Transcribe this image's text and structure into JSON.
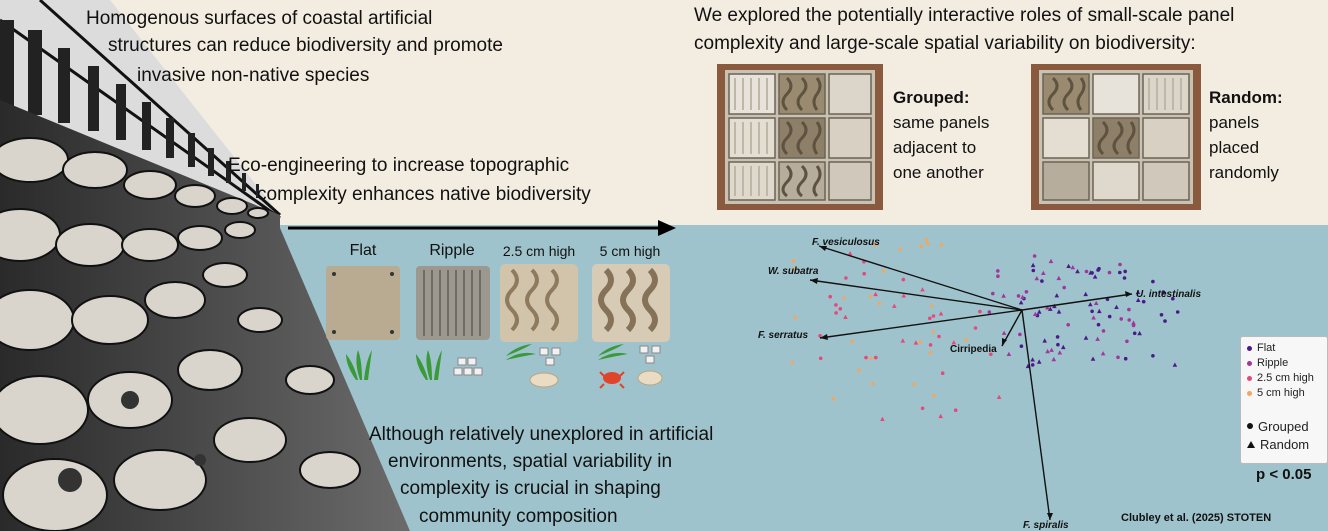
{
  "intro_text": {
    "line1": "Homogenous surfaces of coastal artificial",
    "line2": "structures can reduce biodiversity and promote",
    "line3": "invasive non-native species"
  },
  "eco_text": {
    "line1": "Eco-engineering to increase topographic",
    "line2": "complexity enhances native biodiversity"
  },
  "explored_text": {
    "line1": "We explored the potentially interactive roles of small-scale panel",
    "line2": "complexity and large-scale spatial variability on biodiversity:"
  },
  "grouped": {
    "title": "Grouped:",
    "line1": "same panels",
    "line2": "adjacent to",
    "line3": "one another"
  },
  "random": {
    "title": "Random:",
    "line1": "panels",
    "line2": "placed",
    "line3": "randomly"
  },
  "panels": [
    {
      "label": "Flat"
    },
    {
      "label": "Ripple"
    },
    {
      "label": "2.5 cm high"
    },
    {
      "label": "5 cm high"
    }
  ],
  "bottom_text": {
    "line1": "Although relatively unexplored in artificial",
    "line2": "environments, spatial variability in",
    "line3": "complexity is crucial in shaping",
    "line4": "community composition"
  },
  "ordination": {
    "vectors": [
      {
        "name": "F. vesiculosus"
      },
      {
        "name": "W. subatra"
      },
      {
        "name": "F. serratus"
      },
      {
        "name": "Cirripedia"
      },
      {
        "name": "U. intestinalis"
      },
      {
        "name": "F. spiralis"
      }
    ],
    "p_value": "p < 0.05",
    "colors": {
      "flat": "#4a1a8a",
      "ripple": "#a0379a",
      "high25": "#e4497a",
      "high5": "#f5a65a"
    }
  },
  "legend": {
    "items": [
      "Flat",
      "Ripple",
      "2.5 cm high",
      "5 cm high"
    ],
    "shapes": [
      "Grouped",
      "Random"
    ]
  },
  "citation": "Clubley et al. (2025) STOTEN",
  "colors": {
    "top_bg": "#f3ece1",
    "water": "#9fc3cc"
  }
}
